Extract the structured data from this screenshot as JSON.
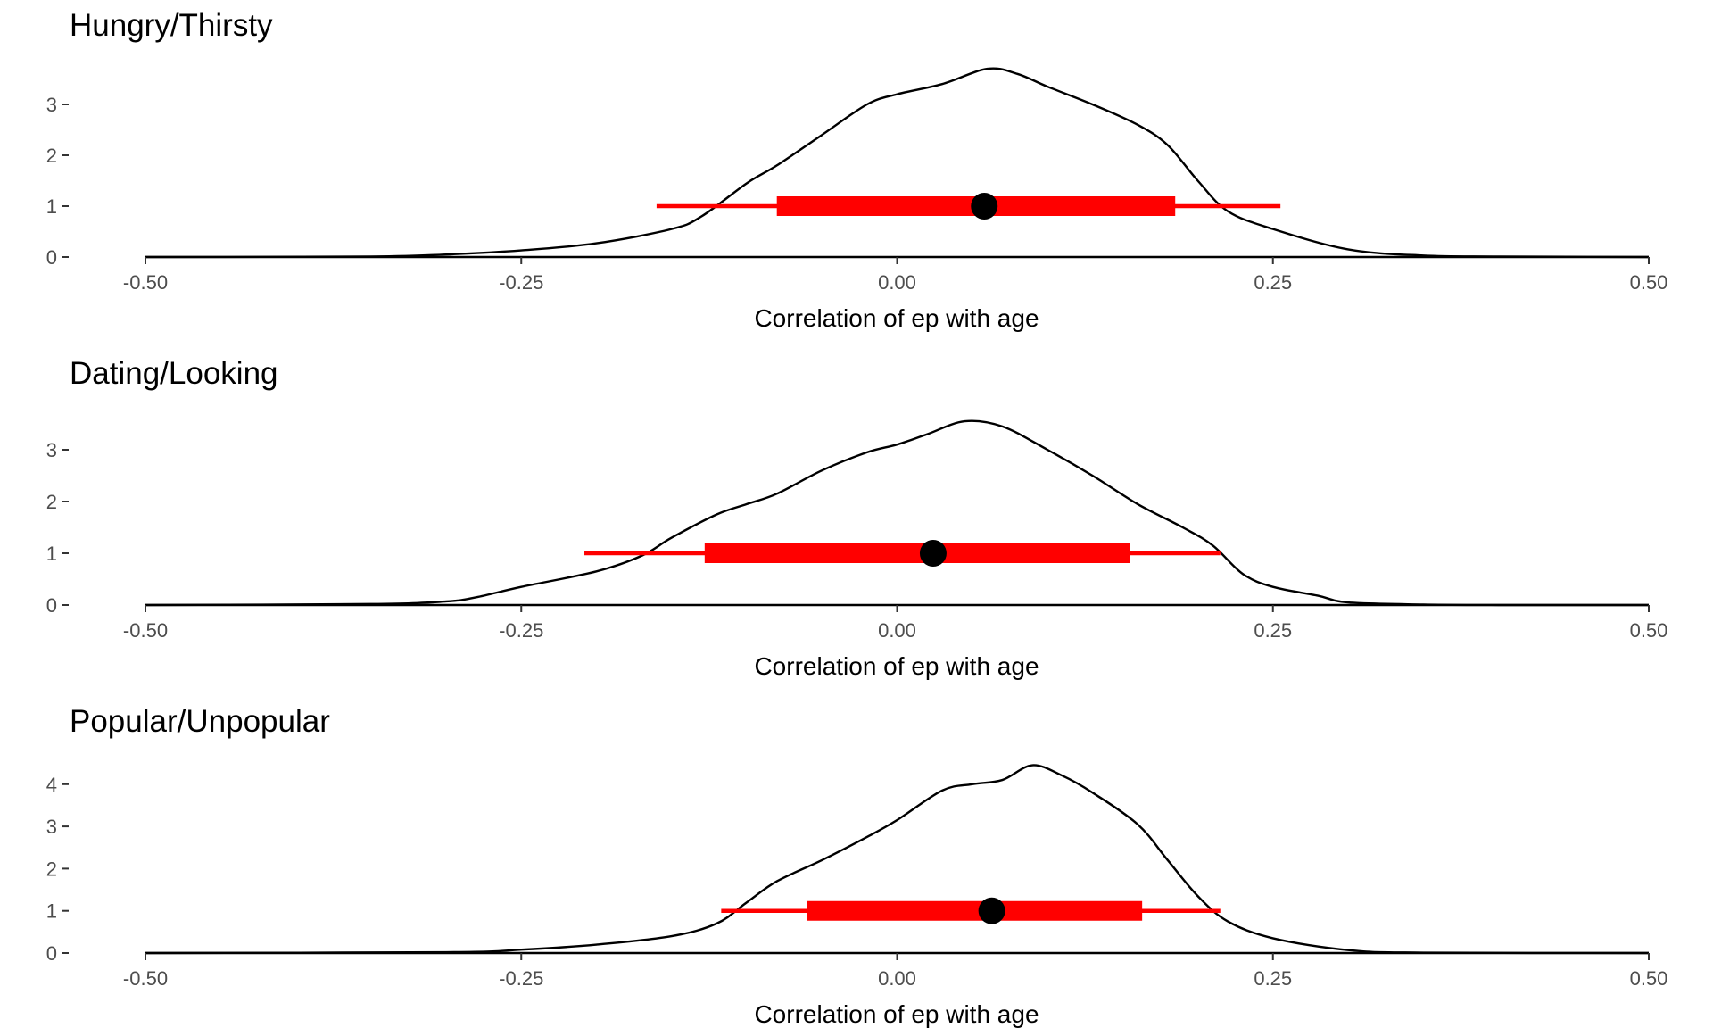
{
  "chart_data": [
    {
      "type": "area",
      "title": "Hungry/Thirsty",
      "xlabel": "Correlation of ep with age",
      "ylabel": "",
      "xlim": [
        -0.5,
        0.5
      ],
      "ylim": [
        0,
        3.8
      ],
      "x_ticks": [
        -0.5,
        -0.25,
        0.0,
        0.25,
        0.5
      ],
      "x_tick_labels": [
        "-0.50",
        "-0.25",
        "0.00",
        "0.25",
        "0.50"
      ],
      "y_ticks": [
        0,
        1,
        2,
        3
      ],
      "y_tick_labels": [
        "0",
        "1",
        "2",
        "3"
      ],
      "grid": false,
      "density": {
        "x": [
          -0.5,
          -0.35,
          -0.3,
          -0.25,
          -0.2,
          -0.15,
          -0.13,
          -0.1,
          -0.08,
          -0.05,
          -0.02,
          0.0,
          0.03,
          0.06,
          0.08,
          0.1,
          0.13,
          0.16,
          0.18,
          0.2,
          0.22,
          0.25,
          0.3,
          0.35,
          0.4,
          0.5
        ],
        "y": [
          0,
          0.01,
          0.05,
          0.13,
          0.27,
          0.55,
          0.8,
          1.45,
          1.8,
          2.4,
          3.0,
          3.2,
          3.4,
          3.7,
          3.6,
          3.35,
          3.0,
          2.6,
          2.2,
          1.5,
          0.9,
          0.55,
          0.15,
          0.03,
          0.01,
          0
        ]
      },
      "interval": {
        "point": 0.058,
        "inner": [
          -0.08,
          0.185
        ],
        "outer": [
          -0.16,
          0.255
        ],
        "y": 1
      }
    },
    {
      "type": "area",
      "title": "Dating/Looking",
      "xlabel": "Correlation of ep with age",
      "ylabel": "",
      "xlim": [
        -0.5,
        0.5
      ],
      "ylim": [
        0,
        3.7
      ],
      "x_ticks": [
        -0.5,
        -0.25,
        0.0,
        0.25,
        0.5
      ],
      "x_tick_labels": [
        "-0.50",
        "-0.25",
        "0.00",
        "0.25",
        "0.50"
      ],
      "y_ticks": [
        0,
        1,
        2,
        3
      ],
      "y_tick_labels": [
        "0",
        "1",
        "2",
        "3"
      ],
      "grid": false,
      "density": {
        "x": [
          -0.5,
          -0.35,
          -0.3,
          -0.28,
          -0.25,
          -0.2,
          -0.17,
          -0.15,
          -0.12,
          -0.1,
          -0.08,
          -0.05,
          -0.02,
          0.0,
          0.02,
          0.045,
          0.07,
          0.1,
          0.13,
          0.16,
          0.19,
          0.21,
          0.23,
          0.25,
          0.28,
          0.3,
          0.35,
          0.4,
          0.5
        ],
        "y": [
          0,
          0.02,
          0.07,
          0.15,
          0.35,
          0.65,
          0.95,
          1.3,
          1.75,
          1.95,
          2.15,
          2.6,
          2.95,
          3.1,
          3.3,
          3.55,
          3.45,
          3.0,
          2.5,
          1.95,
          1.5,
          1.15,
          0.6,
          0.35,
          0.18,
          0.05,
          0.01,
          0,
          0
        ]
      },
      "interval": {
        "point": 0.024,
        "inner": [
          -0.128,
          0.155
        ],
        "outer": [
          -0.208,
          0.215
        ],
        "y": 1
      }
    },
    {
      "type": "area",
      "title": "Popular/Unpopular",
      "xlabel": "Correlation of ep with age",
      "ylabel": "",
      "xlim": [
        -0.5,
        0.5
      ],
      "ylim": [
        0,
        4.5
      ],
      "x_ticks": [
        -0.5,
        -0.25,
        0.0,
        0.25,
        0.5
      ],
      "x_tick_labels": [
        "-0.50",
        "-0.25",
        "0.00",
        "0.25",
        "0.50"
      ],
      "y_ticks": [
        0,
        1,
        2,
        3,
        4
      ],
      "y_tick_labels": [
        "0",
        "1",
        "2",
        "3",
        "4"
      ],
      "grid": false,
      "density": {
        "x": [
          -0.5,
          -0.3,
          -0.25,
          -0.2,
          -0.15,
          -0.12,
          -0.1,
          -0.08,
          -0.05,
          -0.02,
          0.0,
          0.03,
          0.05,
          0.07,
          0.09,
          0.11,
          0.13,
          0.16,
          0.18,
          0.2,
          0.22,
          0.25,
          0.3,
          0.35,
          0.5
        ],
        "y": [
          0,
          0.02,
          0.08,
          0.2,
          0.4,
          0.7,
          1.2,
          1.7,
          2.2,
          2.75,
          3.15,
          3.85,
          4.0,
          4.1,
          4.45,
          4.2,
          3.8,
          3.05,
          2.2,
          1.35,
          0.75,
          0.35,
          0.07,
          0.01,
          0
        ]
      },
      "interval": {
        "point": 0.063,
        "inner": [
          -0.06,
          0.163
        ],
        "outer": [
          -0.117,
          0.215
        ],
        "y": 1
      }
    }
  ]
}
